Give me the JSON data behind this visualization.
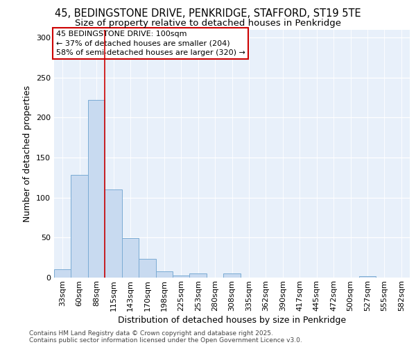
{
  "title_line1": "45, BEDINGSTONE DRIVE, PENKRIDGE, STAFFORD, ST19 5TE",
  "title_line2": "Size of property relative to detached houses in Penkridge",
  "xlabel": "Distribution of detached houses by size in Penkridge",
  "ylabel": "Number of detached properties",
  "categories": [
    "33sqm",
    "60sqm",
    "88sqm",
    "115sqm",
    "143sqm",
    "170sqm",
    "198sqm",
    "225sqm",
    "253sqm",
    "280sqm",
    "308sqm",
    "335sqm",
    "362sqm",
    "390sqm",
    "417sqm",
    "445sqm",
    "472sqm",
    "500sqm",
    "527sqm",
    "555sqm",
    "582sqm"
  ],
  "values": [
    10,
    128,
    222,
    110,
    49,
    23,
    8,
    3,
    5,
    0,
    5,
    0,
    0,
    0,
    0,
    0,
    0,
    0,
    2,
    0,
    0
  ],
  "bar_color": "#c8daf0",
  "bar_edge_color": "#7aabd4",
  "background_color": "#e8f0fa",
  "grid_color": "#ffffff",
  "red_line_x": 2.5,
  "annotation_text": "45 BEDINGSTONE DRIVE: 100sqm\n← 37% of detached houses are smaller (204)\n58% of semi-detached houses are larger (320) →",
  "annotation_box_color": "#ffffff",
  "annotation_border_color": "#cc0000",
  "footer_line1": "Contains HM Land Registry data © Crown copyright and database right 2025.",
  "footer_line2": "Contains public sector information licensed under the Open Government Licence v3.0.",
  "ylim": [
    0,
    310
  ],
  "yticks": [
    0,
    50,
    100,
    150,
    200,
    250,
    300
  ],
  "title_fontsize": 10.5,
  "subtitle_fontsize": 9.5,
  "axis_label_fontsize": 9,
  "tick_fontsize": 8,
  "footer_fontsize": 6.5
}
